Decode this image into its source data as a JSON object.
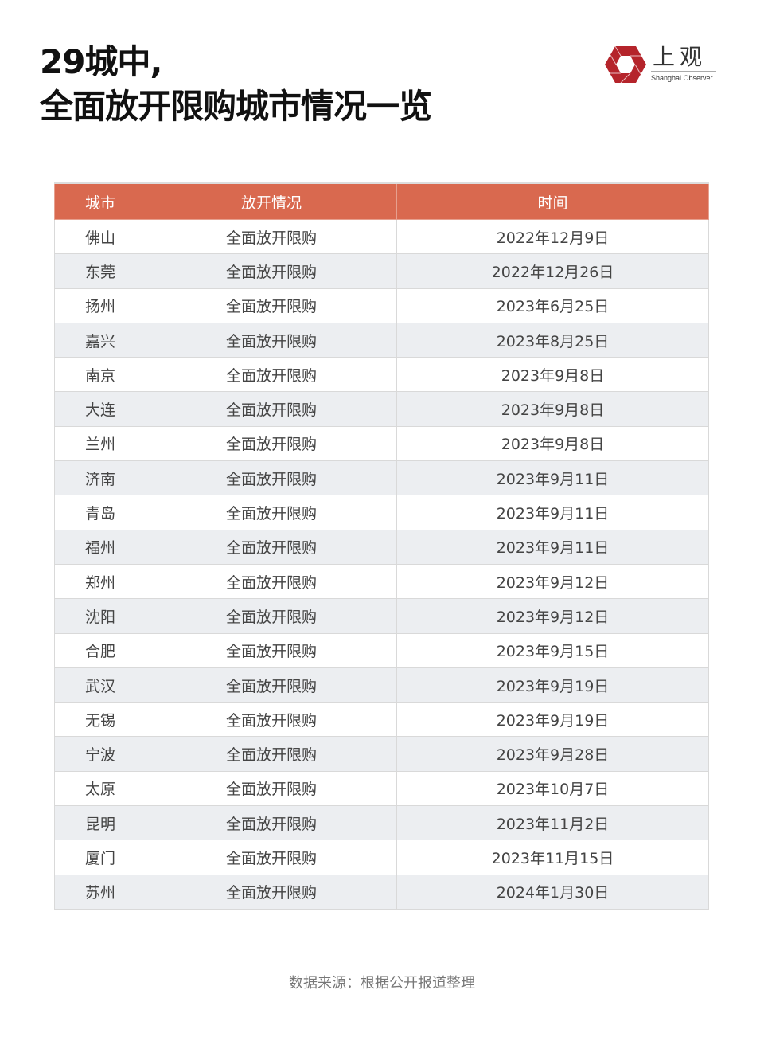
{
  "title": {
    "line1": "29城中,",
    "line2": "全面放开限购城市情况一览"
  },
  "logo": {
    "cn": "上观",
    "en": "Shanghai Observer",
    "color": "#b5242b"
  },
  "table": {
    "headers": [
      "城市",
      "放开情况",
      "时间"
    ],
    "header_color": "#d9694f",
    "rows": [
      [
        "佛山",
        "全面放开限购",
        "2022年12月9日"
      ],
      [
        "东莞",
        "全面放开限购",
        "2022年12月26日"
      ],
      [
        "扬州",
        "全面放开限购",
        "2023年6月25日"
      ],
      [
        "嘉兴",
        "全面放开限购",
        "2023年8月25日"
      ],
      [
        "南京",
        "全面放开限购",
        "2023年9月8日"
      ],
      [
        "大连",
        "全面放开限购",
        "2023年9月8日"
      ],
      [
        "兰州",
        "全面放开限购",
        "2023年9月8日"
      ],
      [
        "济南",
        "全面放开限购",
        "2023年9月11日"
      ],
      [
        "青岛",
        "全面放开限购",
        "2023年9月11日"
      ],
      [
        "福州",
        "全面放开限购",
        "2023年9月11日"
      ],
      [
        "郑州",
        "全面放开限购",
        "2023年9月12日"
      ],
      [
        "沈阳",
        "全面放开限购",
        "2023年9月12日"
      ],
      [
        "合肥",
        "全面放开限购",
        "2023年9月15日"
      ],
      [
        "武汉",
        "全面放开限购",
        "2023年9月19日"
      ],
      [
        "无锡",
        "全面放开限购",
        "2023年9月19日"
      ],
      [
        "宁波",
        "全面放开限购",
        "2023年9月28日"
      ],
      [
        "太原",
        "全面放开限购",
        "2023年10月7日"
      ],
      [
        "昆明",
        "全面放开限购",
        "2023年11月2日"
      ],
      [
        "厦门",
        "全面放开限购",
        "2023年11月15日"
      ],
      [
        "苏州",
        "全面放开限购",
        "2024年1月30日"
      ]
    ]
  },
  "source": "数据来源：根据公开报道整理"
}
